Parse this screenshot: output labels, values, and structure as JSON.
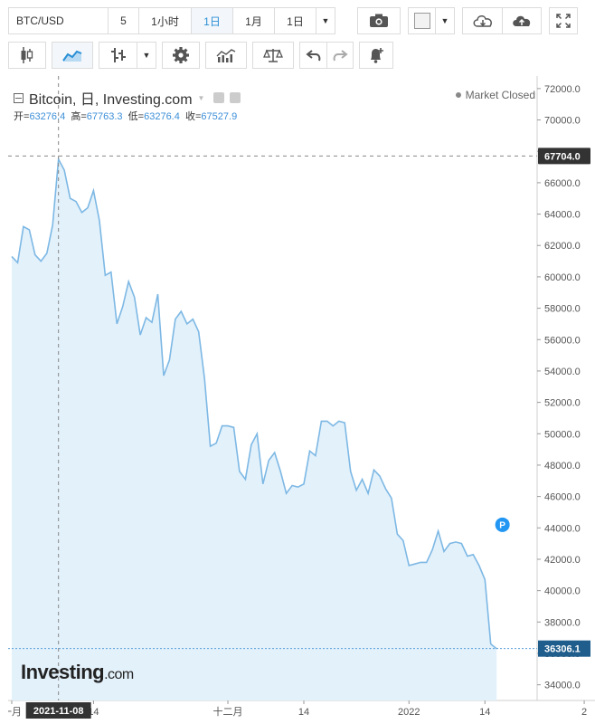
{
  "toolbar": {
    "symbol": "BTC/USD",
    "interval_buttons": [
      "5",
      "1小时",
      "1日",
      "1月",
      "1日"
    ],
    "active_interval": "1日"
  },
  "legend": {
    "title": "Bitcoin, 日, Investing.com",
    "open_label": "开=",
    "open": "63276.4",
    "high_label": "高=",
    "high": "67763.3",
    "low_label": "低=",
    "low": "63276.4",
    "close_label": "收=",
    "close": "67527.9",
    "market_status": "Market Closed"
  },
  "brand": {
    "logo": "Investing",
    "logo_suffix": ".com"
  },
  "colors": {
    "line": "#7db8e4",
    "fill": "#e3f1fb",
    "accent": "#2a8fd6",
    "label_bg": "#1f5d8c",
    "paused_badge": "#2196f3"
  },
  "chart_data": {
    "type": "area",
    "title": "Bitcoin, 日, Investing.com",
    "ylim": [
      33000,
      72800
    ],
    "y_ticks": [
      34000,
      36000,
      38000,
      40000,
      42000,
      44000,
      46000,
      48000,
      50000,
      52000,
      54000,
      56000,
      58000,
      60000,
      62000,
      64000,
      66000,
      68000,
      70000,
      72000
    ],
    "y_tick_labels": [
      "34000.0",
      "36000.0",
      "38000.0",
      "40000.0",
      "42000.0",
      "44000.0",
      "46000.0",
      "48000.0",
      "50000.0",
      "52000.0",
      "54000.0",
      "56000.0",
      "58000.0",
      "60000.0",
      "62000.0",
      "64000.0",
      "66000.0",
      "68000.0",
      "70000.0",
      "72000.0"
    ],
    "x_ticks": [
      {
        "label": "一月",
        "index": 0
      },
      {
        "label": "14",
        "index": 14
      },
      {
        "label": "十二月",
        "index": 37
      },
      {
        "label": "14",
        "index": 50
      },
      {
        "label": "2022",
        "index": 68
      },
      {
        "label": "14",
        "index": 81
      },
      {
        "label": "2",
        "index": 98
      }
    ],
    "crosshair": {
      "x_label": "2021-11-08",
      "index": 8,
      "y_value": 67704.0,
      "y_label": "67704.0"
    },
    "last_price": {
      "value": 36306.1,
      "label": "36306.1"
    },
    "paused_marker": {
      "label": "P",
      "index": 84,
      "value": 44200
    },
    "series": [
      {
        "values": [
          61300,
          60900,
          63200,
          63000,
          61400,
          61000,
          61500,
          63300,
          67500,
          66800,
          65000,
          64800,
          64100,
          64400,
          65500,
          63600,
          60100,
          60300,
          57000,
          58100,
          59700,
          58700,
          56300,
          57400,
          57100,
          58900,
          53700,
          54700,
          57300,
          57800,
          57000,
          57300,
          56500,
          53500,
          49200,
          49400,
          50500,
          50500,
          50400,
          47600,
          47100,
          49300,
          50000,
          46800,
          48300,
          48800,
          47600,
          46200,
          46700,
          46600,
          46800,
          48900,
          48600,
          50800,
          50800,
          50500,
          50800,
          50700,
          47600,
          46400,
          47100,
          46200,
          47700,
          47300,
          46500,
          45900,
          43600,
          43200,
          41600,
          41700,
          41800,
          41800,
          42600,
          43800,
          42500,
          43000,
          43100,
          43000,
          42200,
          42300,
          41600,
          40700,
          36600,
          36300
        ]
      }
    ]
  }
}
